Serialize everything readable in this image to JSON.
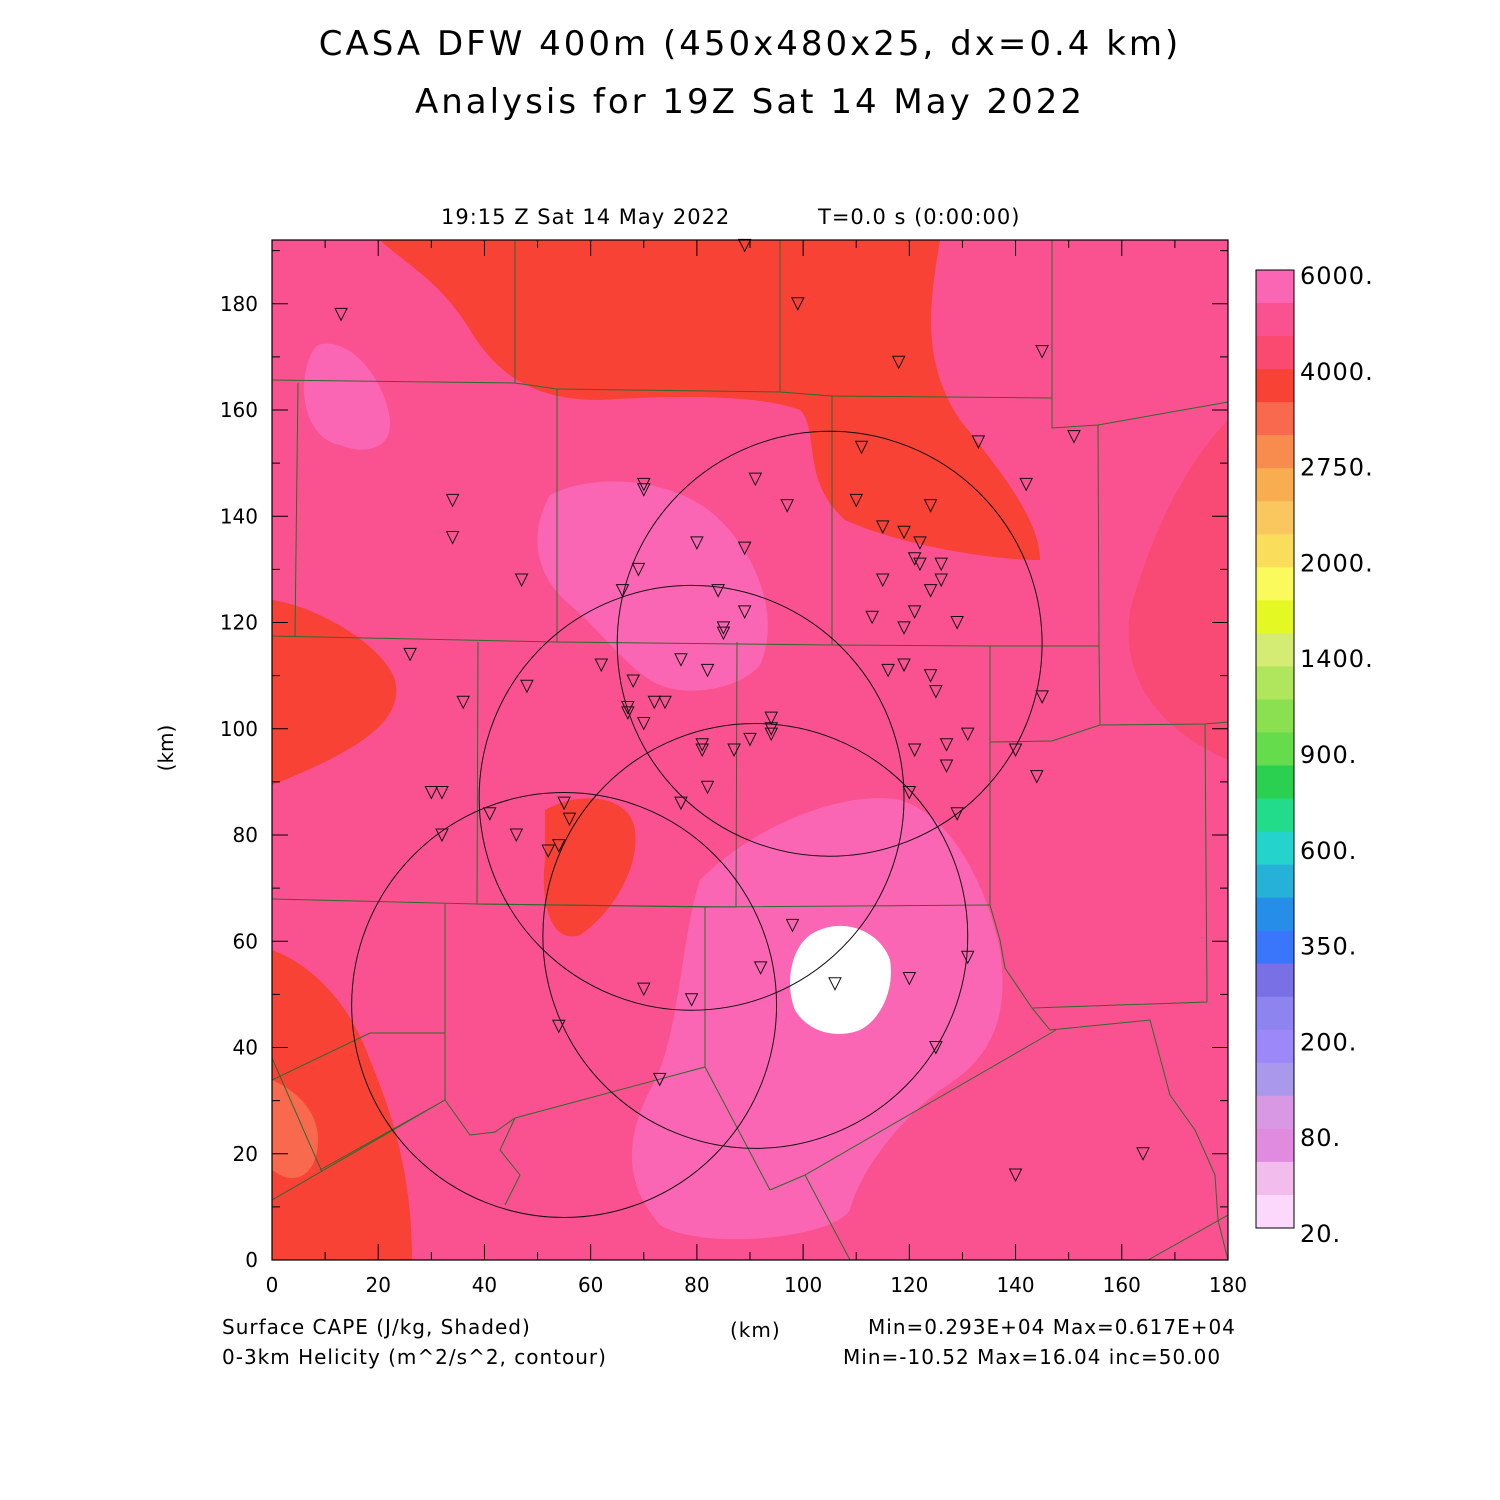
{
  "header": {
    "title": "CASA DFW 400m (450x480x25, dx=0.4 km)",
    "subtitle": "Analysis for 19Z Sat 14 May 2022"
  },
  "plot_header": {
    "time": "19:15 Z Sat 14 May 2022",
    "elapsed": "T=0.0 s (0:00:00)"
  },
  "axes": {
    "x_label": "(km)",
    "y_label": "(km)",
    "x_ticks": [
      "0",
      "20",
      "40",
      "60",
      "80",
      "100",
      "120",
      "140",
      "160",
      "180"
    ],
    "y_ticks": [
      "0",
      "20",
      "40",
      "60",
      "80",
      "100",
      "120",
      "140",
      "160",
      "180"
    ],
    "x_range": [
      0,
      180
    ],
    "y_range": [
      0,
      192
    ]
  },
  "colorbar": {
    "labels": [
      "6000.",
      "4000.",
      "2750.",
      "2000.",
      "1400.",
      "900.",
      "600.",
      "350.",
      "200.",
      "80.",
      "20."
    ],
    "colors": [
      "#fb66b4",
      "#fa5290",
      "#fa4a70",
      "#f84236",
      "#f8694e",
      "#f88c4e",
      "#f8ae50",
      "#fac65e",
      "#fadd5a",
      "#fafa5c",
      "#e4f824",
      "#d4ec74",
      "#b0e65c",
      "#8ae050",
      "#64dc4c",
      "#2cd050",
      "#22dc8c",
      "#24d4cc",
      "#26b2d8",
      "#248ee8",
      "#3a76fc",
      "#7870e4",
      "#8e84f0",
      "#9c88f8",
      "#aa98ec",
      "#d898e4",
      "#e08ae0",
      "#f2bcec",
      "#fcd8fc"
    ]
  },
  "footer": {
    "field1": "Surface CAPE (J/kg, Shaded)",
    "field2": "0-3km Helicity (m^2/s^2, contour)",
    "unit": "(km)",
    "stats1": "Min=0.293E+04 Max=0.617E+04",
    "stats2": "Min=-10.52 Max=16.04 inc=50.00"
  },
  "map": {
    "shading_colors": {
      "base": "#fa5290",
      "high": "#fb66b4",
      "mid": "#f84a74",
      "red": "#f84236",
      "orange": "#f8694e",
      "white": "#ffffff"
    },
    "radar_rings": [
      {
        "center_km": [
          105,
          116
        ],
        "radius_km": 40
      },
      {
        "center_km": [
          79,
          87
        ],
        "radius_km": 40
      },
      {
        "center_km": [
          91,
          61
        ],
        "radius_km": 40
      },
      {
        "center_km": [
          55,
          48
        ],
        "radius_km": 40
      }
    ],
    "stations_km": [
      [
        13,
        178
      ],
      [
        89,
        191
      ],
      [
        99,
        180
      ],
      [
        118,
        169
      ],
      [
        145,
        171
      ],
      [
        151,
        155
      ],
      [
        111,
        153
      ],
      [
        133,
        154
      ],
      [
        142,
        146
      ],
      [
        34,
        143
      ],
      [
        34,
        136
      ],
      [
        70,
        146
      ],
      [
        70,
        145
      ],
      [
        91,
        147
      ],
      [
        97,
        142
      ],
      [
        110,
        143
      ],
      [
        124,
        142
      ],
      [
        115,
        138
      ],
      [
        119,
        137
      ],
      [
        122,
        135
      ],
      [
        89,
        134
      ],
      [
        80,
        135
      ],
      [
        69,
        130
      ],
      [
        66,
        126
      ],
      [
        84,
        126
      ],
      [
        47,
        128
      ],
      [
        121,
        132
      ],
      [
        122,
        131
      ],
      [
        126,
        131
      ],
      [
        126,
        128
      ],
      [
        115,
        128
      ],
      [
        124,
        126
      ],
      [
        89,
        122
      ],
      [
        113,
        121
      ],
      [
        121,
        122
      ],
      [
        129,
        120
      ],
      [
        119,
        119
      ],
      [
        85,
        119
      ],
      [
        85,
        118
      ],
      [
        26,
        114
      ],
      [
        62,
        112
      ],
      [
        77,
        113
      ],
      [
        82,
        111
      ],
      [
        116,
        111
      ],
      [
        119,
        112
      ],
      [
        124,
        110
      ],
      [
        125,
        107
      ],
      [
        36,
        105
      ],
      [
        48,
        108
      ],
      [
        68,
        109
      ],
      [
        72,
        105
      ],
      [
        74,
        105
      ],
      [
        67,
        104
      ],
      [
        67,
        103
      ],
      [
        70,
        101
      ],
      [
        94,
        102
      ],
      [
        94,
        100
      ],
      [
        94,
        99
      ],
      [
        145,
        106
      ],
      [
        131,
        99
      ],
      [
        127,
        97
      ],
      [
        121,
        96
      ],
      [
        90,
        98
      ],
      [
        81,
        97
      ],
      [
        81,
        96
      ],
      [
        87,
        96
      ],
      [
        140,
        96
      ],
      [
        127,
        93
      ],
      [
        144,
        91
      ],
      [
        30,
        88
      ],
      [
        32,
        88
      ],
      [
        82,
        89
      ],
      [
        120,
        88
      ],
      [
        77,
        86
      ],
      [
        41,
        84
      ],
      [
        55,
        86
      ],
      [
        56,
        83
      ],
      [
        32,
        80
      ],
      [
        46,
        80
      ],
      [
        54,
        78
      ],
      [
        52,
        77
      ],
      [
        129,
        84
      ],
      [
        98,
        63
      ],
      [
        92,
        55
      ],
      [
        131,
        57
      ],
      [
        120,
        53
      ],
      [
        106,
        52
      ],
      [
        70,
        51
      ],
      [
        79,
        49
      ],
      [
        54,
        44
      ],
      [
        125,
        40
      ],
      [
        73,
        34
      ],
      [
        164,
        20
      ],
      [
        140,
        16
      ]
    ]
  }
}
